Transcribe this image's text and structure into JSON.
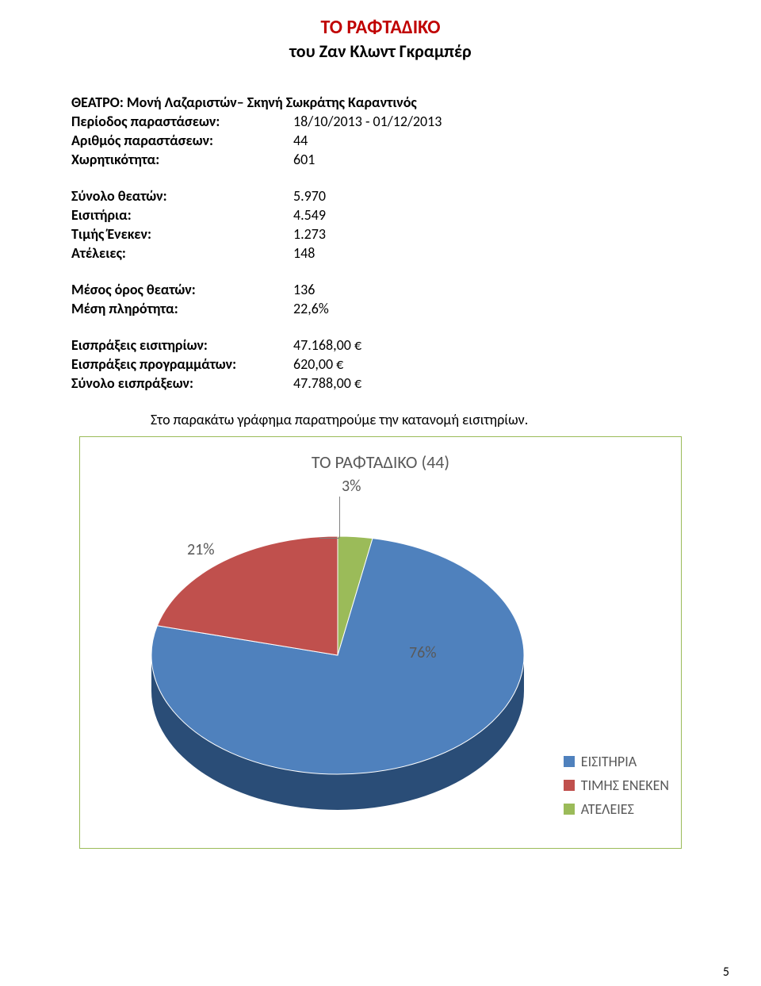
{
  "titles": {
    "main": "ΤΟ ΡΑΦΤΑΔΙΚΟ",
    "sub": "του Ζαν Κλωντ Γκραμπέρ"
  },
  "theater": {
    "label": "ΘΕΑΤΡΟ:",
    "value": "Μονή Λαζαριστών– Σκηνή Σωκράτης Καραντινός"
  },
  "group1": [
    {
      "label": "Περίοδος παραστάσεων:",
      "value": "18/10/2013 - 01/12/2013"
    },
    {
      "label": "Αριθμός παραστάσεων:",
      "value": "44"
    },
    {
      "label": "Χωρητικότητα:",
      "value": "601"
    }
  ],
  "group2": [
    {
      "label": "Σύνολο θεατών:",
      "value": "5.970"
    },
    {
      "label": "Εισιτήρια:",
      "value": "4.549"
    },
    {
      "label": "Τιμής Ένεκεν:",
      "value": "1.273"
    },
    {
      "label": "Ατέλειες:",
      "value": "148"
    }
  ],
  "group3": [
    {
      "label": "Μέσος όρος θεατών:",
      "value": "136"
    },
    {
      "label": "Μέση πληρότητα:",
      "value": "22,6%"
    }
  ],
  "group4": [
    {
      "label": "Εισπράξεις εισιτηρίων:",
      "value": "47.168,00 €"
    },
    {
      "label": "Εισπράξεις προγραμμάτων:",
      "value": "620,00 €"
    },
    {
      "label": "Σύνολο εισπράξεων:",
      "value": "47.788,00 €"
    }
  ],
  "chart_caption": "Στο παρακάτω γράφημα παρατηρούμε την κατανομή εισιτηρίων.",
  "chart": {
    "type": "pie",
    "title": "ΤΟ ΡΑΦΤΑΔΙΚΟ (44)",
    "title_fontsize": 22,
    "title_color": "#595959",
    "background_color": "#ffffff",
    "border_color": "#9bbb59",
    "series": [
      {
        "name": "ΕΙΣΙΤΗΡΙΑ",
        "pct_label": "76%",
        "color": "#4f81bd",
        "side_color": "#2a4d77"
      },
      {
        "name": "ΤΙΜΗΣ ΕΝΕΚΕΝ",
        "pct_label": "21%",
        "color": "#c0504d",
        "side_color": "#7a2e2c"
      },
      {
        "name": "ΑΤΕΛΕΙΕΣ",
        "pct_label": "3%",
        "color": "#9bbb59",
        "side_color": "#6a8a36"
      }
    ],
    "label_fontsize": 20,
    "label_color": "#595959",
    "legend_fontsize": 18,
    "legend_position": "bottom-right"
  },
  "page_number": "5"
}
